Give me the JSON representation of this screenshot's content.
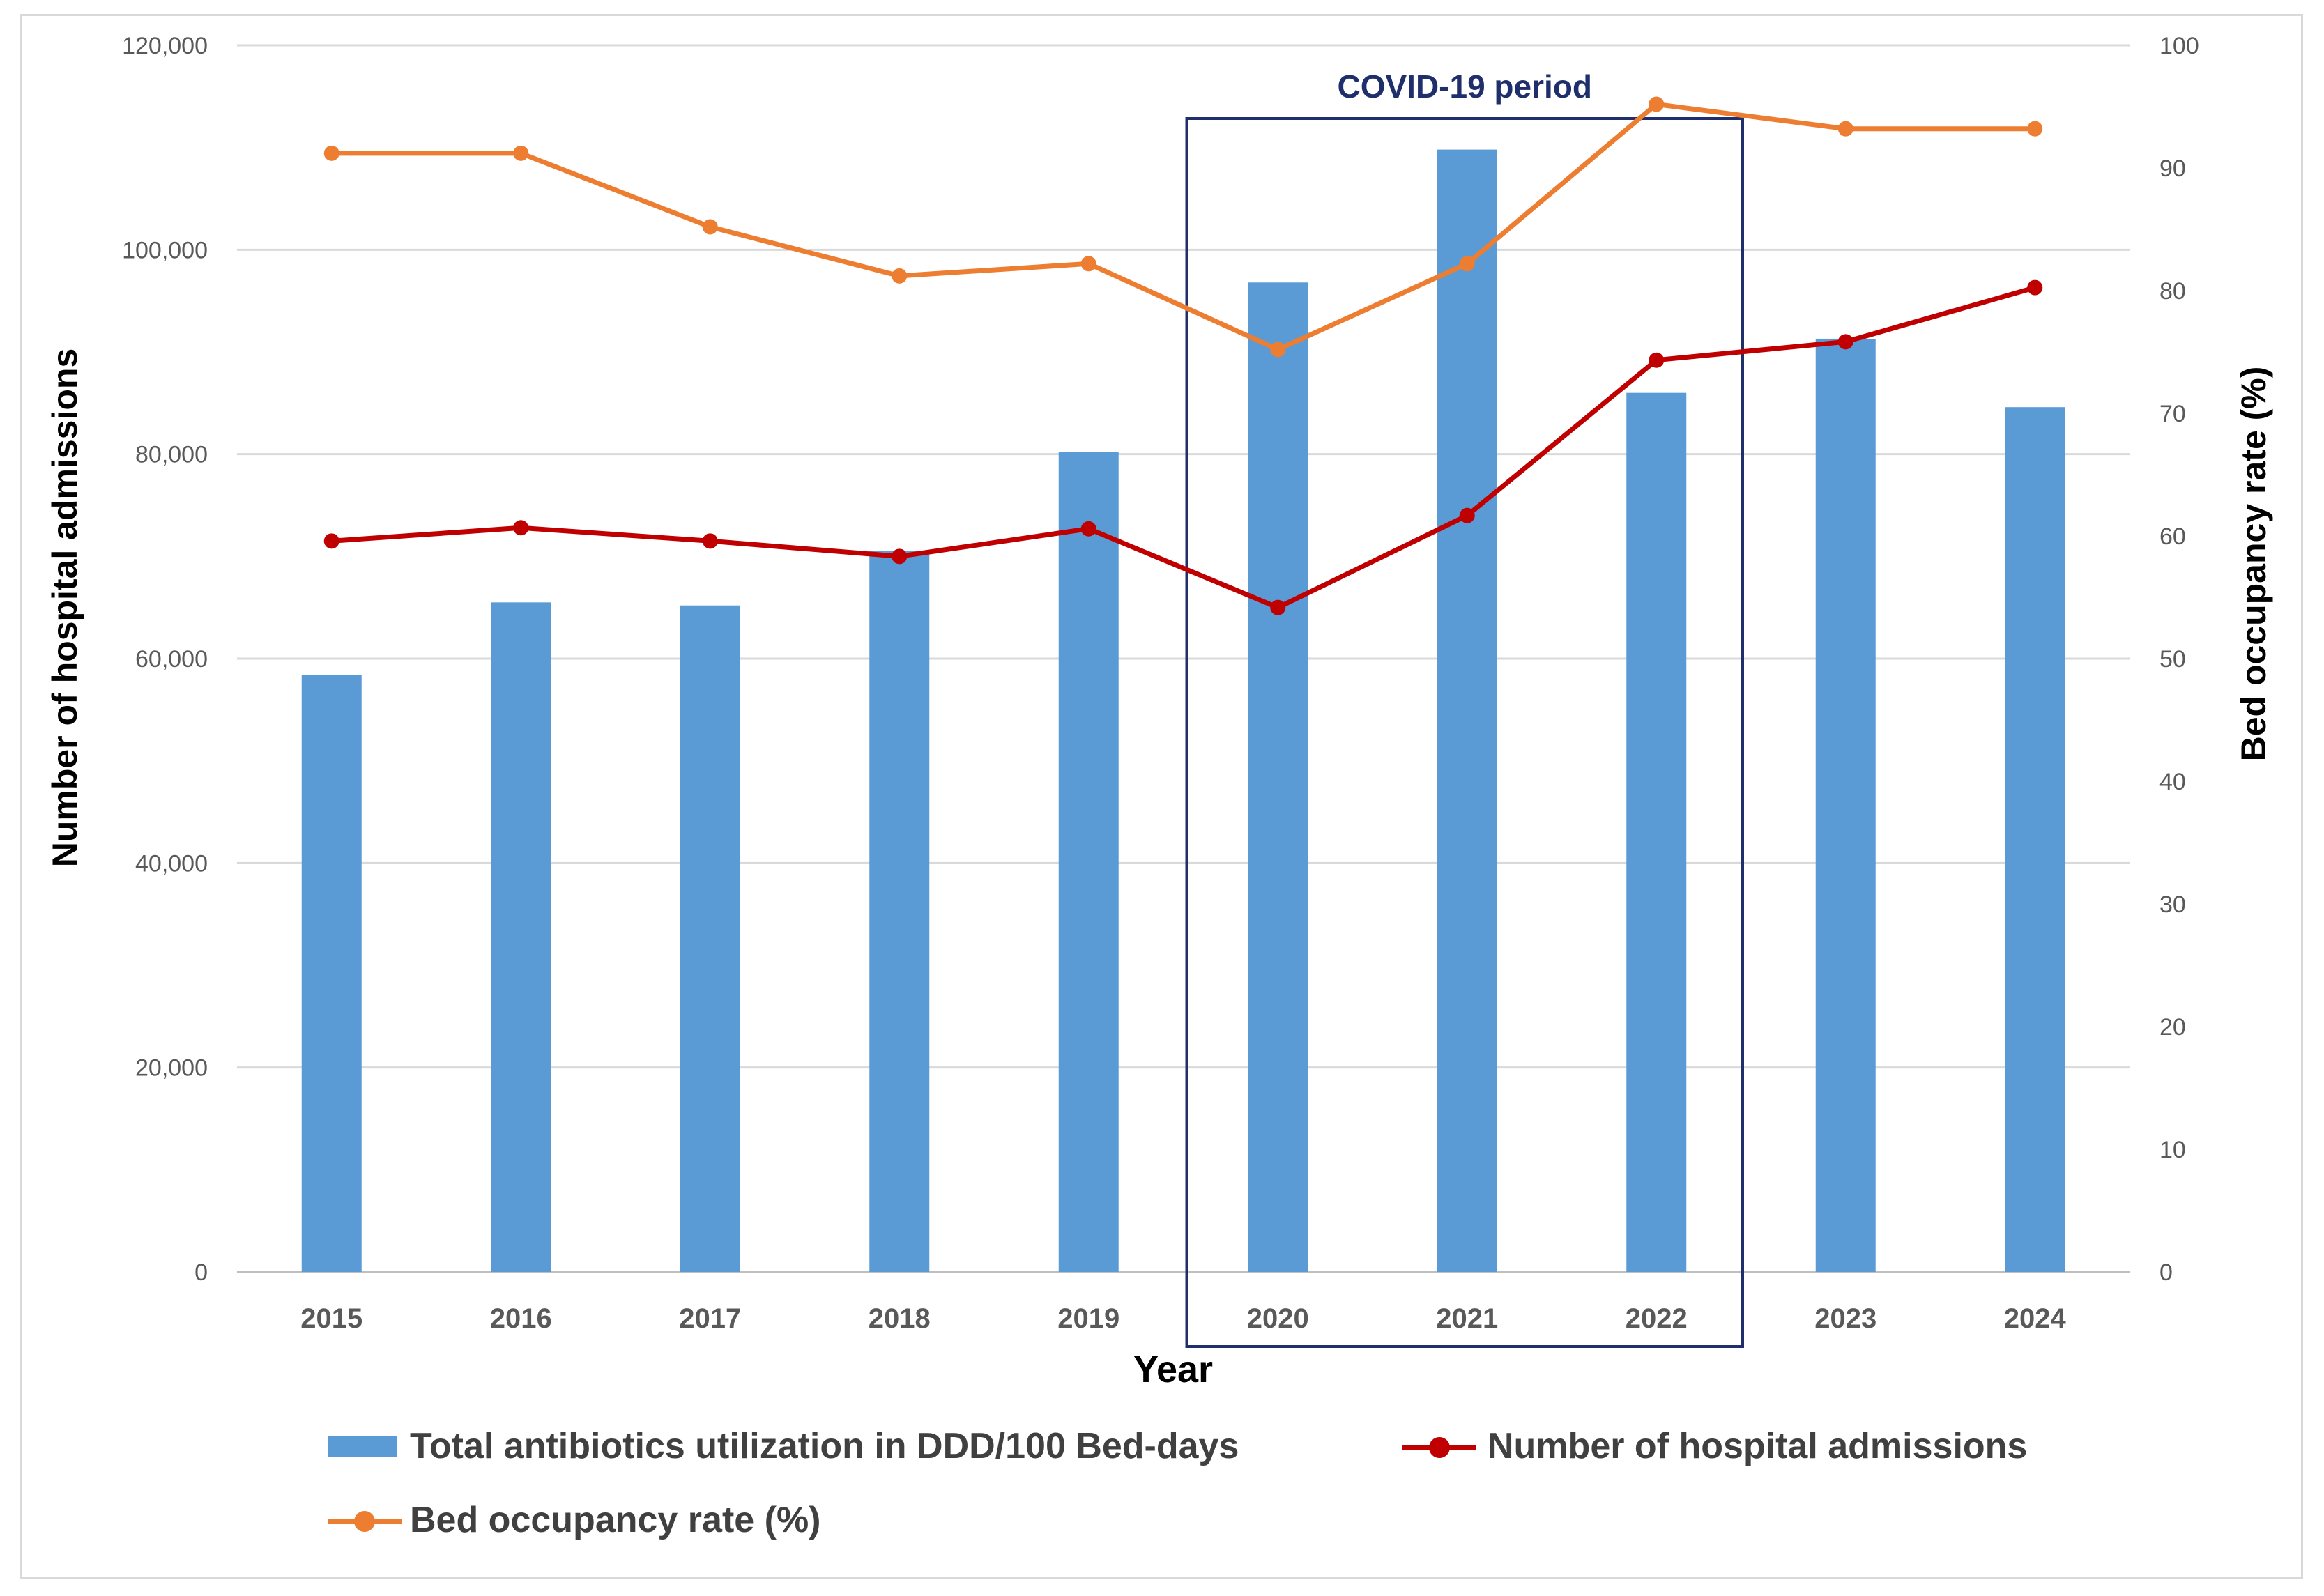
{
  "chart_data": {
    "type": "bar+line",
    "categories": [
      "2015",
      "2016",
      "2017",
      "2018",
      "2019",
      "2020",
      "2021",
      "2022",
      "2023",
      "2024"
    ],
    "xlabel": "Year",
    "ylabel_left": "Number of hospital admissions",
    "ylabel_right": "Bed occupancy rate (%)",
    "ylim_left": [
      0,
      120000
    ],
    "ylim_right": [
      0,
      100
    ],
    "yticks_left": [
      "0",
      "20,000",
      "40,000",
      "60,000",
      "80,000",
      "100,000",
      "120,000"
    ],
    "yticks_left_values": [
      0,
      20000,
      40000,
      60000,
      80000,
      100000,
      120000
    ],
    "yticks_right": [
      "0",
      "10",
      "20",
      "30",
      "40",
      "50",
      "60",
      "70",
      "80",
      "90",
      "100"
    ],
    "yticks_right_values": [
      0,
      10,
      20,
      30,
      40,
      50,
      60,
      70,
      80,
      90,
      100
    ],
    "grid": true,
    "series": [
      {
        "name": "Total antibiotics utilization in DDD/100 Bed-days",
        "kind": "bar",
        "axis": "left",
        "color": "#5b9bd5",
        "values": [
          58400,
          65500,
          65200,
          70500,
          80200,
          96800,
          109800,
          86000,
          91300,
          84600
        ]
      },
      {
        "name": "Number of hospital admissions",
        "kind": "line",
        "axis": "left",
        "color": "#c00000",
        "values": [
          71500,
          72800,
          71500,
          70000,
          72700,
          65000,
          74000,
          89200,
          91000,
          96300
        ]
      },
      {
        "name": "Bed occupancy rate (%)",
        "kind": "line",
        "axis": "right",
        "color": "#ed7d31",
        "values": [
          91.2,
          91.2,
          85.2,
          81.2,
          82.2,
          75.2,
          82.2,
          95.2,
          93.2,
          93.2
        ]
      }
    ],
    "annotation": {
      "label": "COVID-19 period",
      "start": "2020",
      "end": "2022",
      "color": "#1f2f6b"
    },
    "legend_position": "bottom"
  }
}
